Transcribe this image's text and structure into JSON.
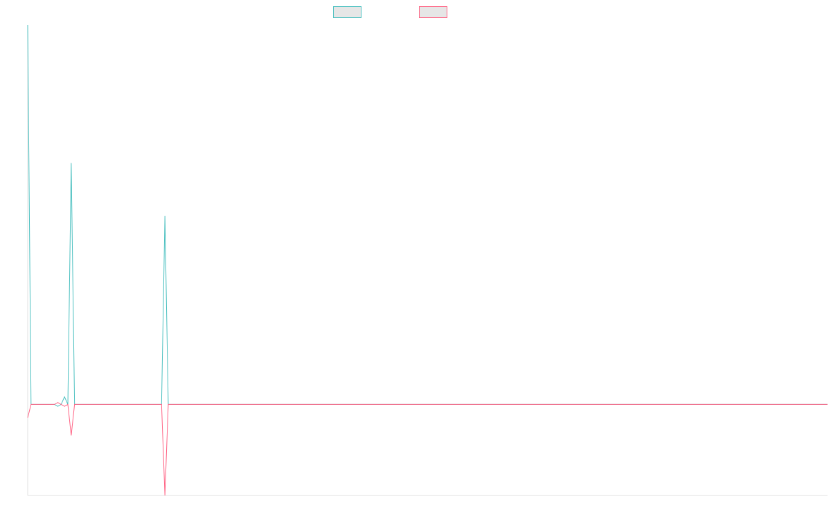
{
  "chart_data": {
    "type": "line",
    "x_count": 240,
    "ylim": [
      -0.24,
      1.0
    ],
    "grid": false,
    "legend_position": "top-center",
    "series": [
      {
        "color": "#4bc0c0",
        "points": [
          [
            0,
            1.0
          ],
          [
            1,
            0.0
          ],
          [
            8,
            0.0
          ],
          [
            9,
            -0.005
          ],
          [
            10,
            0.0
          ],
          [
            11,
            0.02
          ],
          [
            12,
            0.0
          ],
          [
            13,
            0.636
          ],
          [
            14,
            0.0
          ],
          [
            40,
            0.0
          ],
          [
            41,
            0.497
          ],
          [
            42,
            0.0
          ],
          [
            239,
            0.0
          ]
        ]
      },
      {
        "color": "#ff6384",
        "points": [
          [
            0,
            -0.035
          ],
          [
            1,
            0.0
          ],
          [
            8,
            0.0
          ],
          [
            9,
            0.005
          ],
          [
            10,
            0.0
          ],
          [
            11,
            -0.005
          ],
          [
            12,
            0.0
          ],
          [
            13,
            -0.082
          ],
          [
            14,
            0.0
          ],
          [
            40,
            0.0
          ],
          [
            41,
            -0.24
          ],
          [
            42,
            0.0
          ],
          [
            239,
            0.0
          ]
        ]
      }
    ],
    "legend": [
      {
        "label": "",
        "color": "#4bc0c0"
      },
      {
        "label": "",
        "color": "#ff6384"
      }
    ]
  }
}
